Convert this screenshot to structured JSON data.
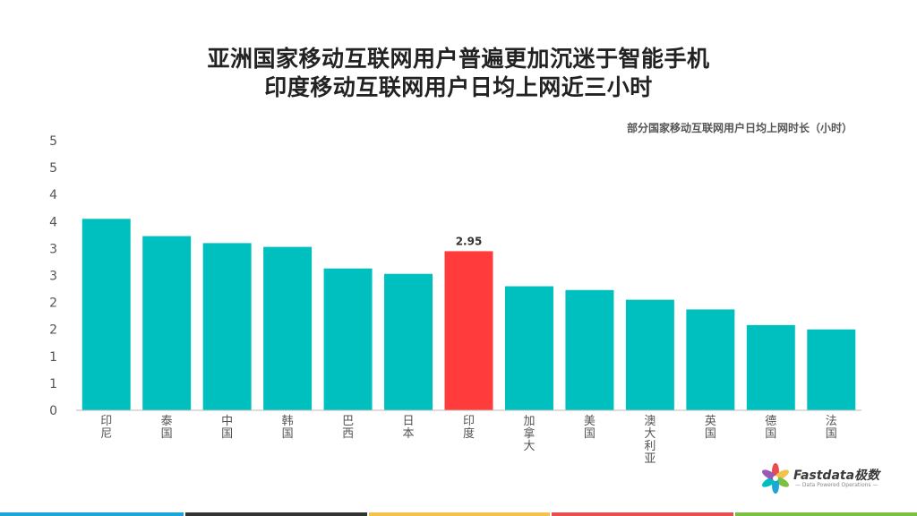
{
  "header": {
    "title_line1": "亚洲国家移动互联网用户普遍更加沉迷于智能手机",
    "title_line2": "印度移动互联网用户日均上网近三小时",
    "subtitle": "部分国家移动互联网用户日均上网时长（小时）"
  },
  "chart_data": {
    "type": "bar",
    "categories": [
      "印尼",
      "泰国",
      "中国",
      "韩国",
      "巴西",
      "日本",
      "印度",
      "加拿大",
      "美国",
      "澳大利亚",
      "英国",
      "德国",
      "法国"
    ],
    "values": [
      3.55,
      3.23,
      3.1,
      3.03,
      2.63,
      2.53,
      2.95,
      2.3,
      2.23,
      2.05,
      1.87,
      1.58,
      1.5
    ],
    "y_tick_labels": [
      "0",
      "1",
      "1",
      "2",
      "2",
      "3",
      "3",
      "4",
      "4",
      "5",
      "5"
    ],
    "ylim": [
      0,
      5
    ],
    "highlight_index": 6,
    "data_labels": {
      "6": "2.95"
    },
    "colors": {
      "bar": "#00BFBF",
      "highlight": "#FF3B3B"
    },
    "grid": false
  },
  "logo": {
    "name": "Fastdata极数",
    "tagline": "— Data Powered Operations —"
  },
  "bottom_strip_colors": [
    "#1EA5D8",
    "#333333",
    "#F2C14E",
    "#E94E4E",
    "#7AC143"
  ]
}
